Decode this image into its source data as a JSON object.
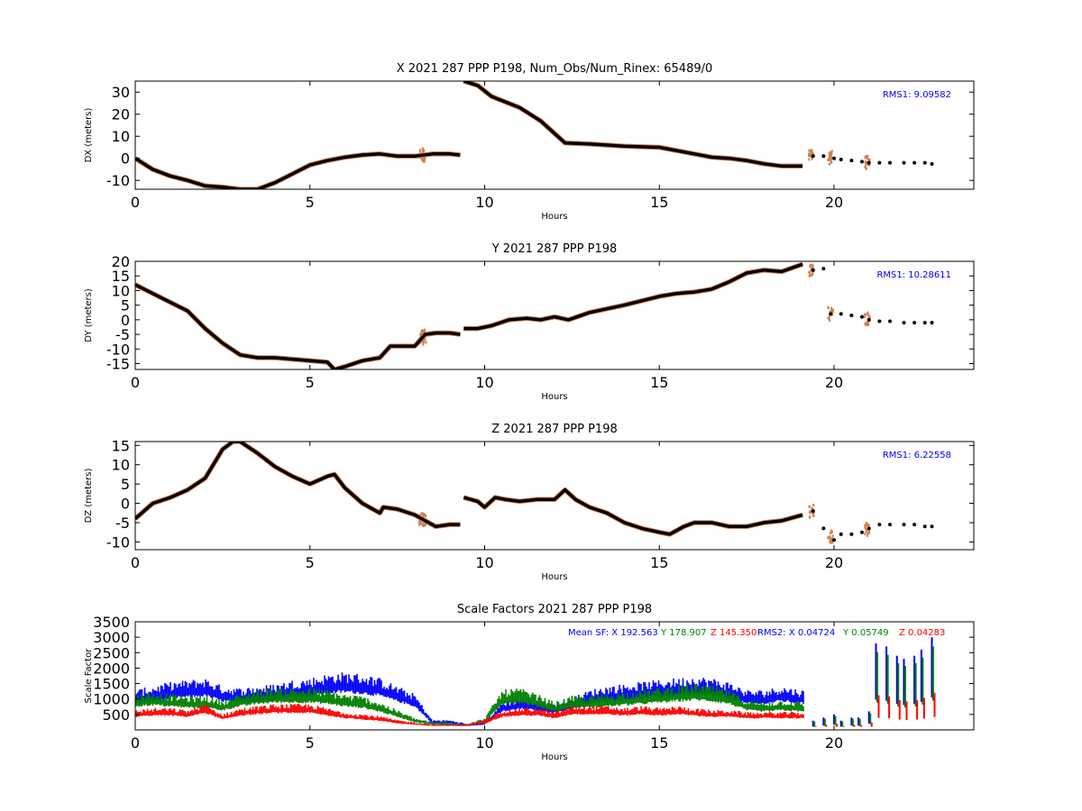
{
  "chart_data": [
    {
      "type": "scatter",
      "title": "X 2021 287 PPP  P198, Num_Obs/Num_Rinex: 65489/0",
      "xlabel": "Hours",
      "ylabel": "DX (meters)",
      "xlim": [
        0,
        24
      ],
      "ylim": [
        -14,
        35
      ],
      "xticks": [
        0,
        5,
        10,
        15,
        20
      ],
      "yticks": [
        -10,
        0,
        10,
        20,
        30
      ],
      "annotation": "RMS1:  9.09582",
      "colors": {
        "points": "#000000",
        "error": "#cd8050",
        "annotation": "#0000ff"
      },
      "series": [
        {
          "x": [
            0,
            0.5,
            1.0,
            1.5,
            2.0,
            2.5,
            3.0,
            3.5,
            4.0,
            4.5,
            5.0,
            5.5,
            6.0,
            6.5,
            7.0,
            7.5,
            8.0,
            8.5,
            9.0,
            9.3
          ],
          "y": [
            0,
            -5,
            -8,
            -10,
            -12.5,
            -13,
            -14,
            -14,
            -11,
            -7,
            -3,
            -1,
            0.5,
            1.5,
            2,
            1,
            1,
            2,
            2,
            1.5
          ],
          "error_at": [
            8.2,
            8.25
          ]
        },
        {
          "x": [
            9.4,
            9.8,
            10.2,
            11,
            11.6,
            12.3,
            13,
            14,
            15,
            16,
            16.5,
            17,
            17.5,
            18,
            18.5,
            19.1
          ],
          "y": [
            35,
            33,
            28,
            23,
            17,
            7,
            6.5,
            5.5,
            5,
            2,
            0.5,
            0,
            -1,
            -2.5,
            -3.5,
            -3.5
          ],
          "error_at": []
        },
        {
          "x": [
            19.4,
            19.7,
            20.0,
            20.2,
            20.5,
            20.8,
            21.0,
            21.3,
            21.6,
            22.0,
            22.3,
            22.6,
            22.8
          ],
          "y": [
            1,
            1,
            0,
            -0.5,
            -1,
            -1.5,
            -2,
            -2,
            -2,
            -2,
            -2,
            -2,
            -2.5
          ],
          "error_at": [
            19.35,
            19.9,
            20.95
          ]
        }
      ]
    },
    {
      "type": "scatter",
      "title": "Y 2021 287 PPP  P198",
      "xlabel": "Hours",
      "ylabel": "DY (meters)",
      "xlim": [
        0,
        24
      ],
      "ylim": [
        -17,
        20
      ],
      "xticks": [
        0,
        5,
        10,
        15,
        20
      ],
      "yticks": [
        -15,
        -10,
        -5,
        0,
        5,
        10,
        15,
        20
      ],
      "annotation": "RMS1: 10.28611",
      "colors": {
        "points": "#000000",
        "error": "#cd8050",
        "annotation": "#0000ff"
      },
      "series": [
        {
          "x": [
            0,
            0.5,
            1.0,
            1.5,
            2.0,
            2.5,
            3.0,
            3.5,
            4.0,
            4.5,
            5.0,
            5.5,
            5.7,
            6.0,
            6.5,
            7.0,
            7.3,
            7.6,
            8.0,
            8.3,
            8.6,
            9.0,
            9.3
          ],
          "y": [
            12,
            9,
            6,
            3,
            -3,
            -8,
            -12,
            -13,
            -13,
            -13.5,
            -14,
            -14.5,
            -17,
            -16,
            -14,
            -13,
            -9,
            -9,
            -9,
            -5,
            -4.5,
            -4.5,
            -5
          ],
          "error_at": [
            8.2,
            8.25
          ]
        },
        {
          "x": [
            9.4,
            9.8,
            10.2,
            10.7,
            11.2,
            11.6,
            12.0,
            12.4,
            13,
            14,
            15,
            15.5,
            16,
            16.5,
            17,
            17.5,
            18,
            18.5,
            19.1
          ],
          "y": [
            -3,
            -3,
            -2,
            0,
            0.5,
            0,
            1,
            0,
            2.5,
            5,
            8,
            9,
            9.5,
            10.5,
            13,
            16,
            17,
            16.5,
            19
          ],
          "error_at": []
        },
        {
          "x": [
            19.4,
            19.7,
            19.9,
            20.2,
            20.5,
            20.8,
            21.0,
            21.3,
            21.6,
            22.0,
            22.3,
            22.6,
            22.8
          ],
          "y": [
            17,
            17.5,
            2,
            2,
            1.5,
            1,
            0,
            -0.5,
            -0.5,
            -1,
            -1,
            -1,
            -1
          ],
          "error_at": [
            19.35,
            19.9,
            20.95
          ]
        }
      ]
    },
    {
      "type": "scatter",
      "title": "Z 2021 287 PPP  P198",
      "xlabel": "Hours",
      "ylabel": "DZ (meters)",
      "xlim": [
        0,
        24
      ],
      "ylim": [
        -12,
        16
      ],
      "xticks": [
        0,
        5,
        10,
        15,
        20
      ],
      "yticks": [
        -10,
        -5,
        0,
        5,
        10,
        15
      ],
      "annotation": "RMS1:  6.22558",
      "colors": {
        "points": "#000000",
        "error": "#cd8050",
        "annotation": "#0000ff"
      },
      "series": [
        {
          "x": [
            0,
            0.5,
            1.0,
            1.5,
            2.0,
            2.5,
            2.8,
            3.0,
            3.5,
            4.0,
            4.5,
            5.0,
            5.5,
            5.7,
            6.0,
            6.5,
            7.0,
            7.1,
            7.5,
            8.0,
            8.3,
            8.6,
            9.0,
            9.3
          ],
          "y": [
            -4,
            0,
            1.5,
            3.5,
            6.5,
            14,
            16,
            16,
            13,
            9.5,
            7,
            5,
            7,
            7.5,
            4,
            0,
            -2.5,
            -1,
            -1.5,
            -3,
            -4.5,
            -6,
            -5.5,
            -5.5
          ],
          "error_at": [
            8.2,
            8.25
          ]
        },
        {
          "x": [
            9.4,
            9.8,
            10.0,
            10.3,
            10.6,
            11.0,
            11.5,
            12.0,
            12.3,
            12.6,
            13,
            13.5,
            14,
            14.5,
            15,
            15.3,
            15.7,
            16,
            16.5,
            17,
            17.5,
            18,
            18.5,
            19.1
          ],
          "y": [
            1.5,
            0.5,
            -1,
            1.5,
            1,
            0.5,
            1,
            1,
            3.5,
            1,
            -1,
            -2.5,
            -5,
            -6.5,
            -7.5,
            -8,
            -6,
            -5,
            -5,
            -6,
            -6,
            -5,
            -4.5,
            -3
          ],
          "error_at": []
        },
        {
          "x": [
            19.4,
            19.7,
            20.0,
            20.2,
            20.5,
            20.8,
            21.0,
            21.3,
            21.6,
            22.0,
            22.3,
            22.6,
            22.8
          ],
          "y": [
            -2,
            -6.5,
            -9.5,
            -8,
            -8,
            -7.5,
            -6.5,
            -5.5,
            -5.5,
            -5.5,
            -5.5,
            -6,
            -6
          ],
          "error_at": [
            19.35,
            19.9,
            20.95
          ]
        }
      ]
    },
    {
      "type": "scatter",
      "title": "Scale Factors 2021 287 PPP  P198",
      "xlabel": "Hours",
      "ylabel": "Scale Factor",
      "xlim": [
        0,
        24
      ],
      "ylim": [
        0,
        3500
      ],
      "xticks": [
        0,
        5,
        10,
        15,
        20
      ],
      "yticks": [
        500,
        1000,
        1500,
        2000,
        2500,
        3000,
        3500
      ],
      "annotation_parts": [
        {
          "text": "Mean SF: X 192.563",
          "color": "#0000ff"
        },
        {
          "text": "Y 178.907",
          "color": "#008000"
        },
        {
          "text": "Z 145.350",
          "color": "#ff0000"
        },
        {
          "text": "RMS2: X  0.04724",
          "color": "#0000ff"
        },
        {
          "text": "Y  0.05749",
          "color": "#008000"
        },
        {
          "text": "Z  0.04283",
          "color": "#ff0000"
        }
      ],
      "series": [
        {
          "name": "X",
          "color": "#0000ff",
          "x": [
            0,
            0.5,
            1.0,
            1.5,
            2.0,
            2.5,
            3.0,
            3.5,
            4.0,
            4.5,
            5.0,
            5.5,
            6.0,
            6.5,
            7.0,
            7.5,
            8.0,
            8.5,
            9.0,
            9.3,
            9.5,
            10.0,
            10.5,
            11.0,
            11.5,
            12.0,
            12.5,
            13,
            13.5,
            14,
            14.5,
            15,
            15.5,
            16,
            16.5,
            17,
            17.5,
            18,
            18.5,
            19.1
          ],
          "y": [
            1000,
            1100,
            1200,
            1250,
            1300,
            1100,
            1050,
            1100,
            1150,
            1250,
            1300,
            1400,
            1450,
            1400,
            1300,
            1100,
            900,
            250,
            250,
            200,
            150,
            200,
            700,
            800,
            750,
            650,
            800,
            1000,
            1100,
            1150,
            1200,
            1250,
            1300,
            1350,
            1300,
            1200,
            1000,
            1000,
            1100,
            1000
          ]
        },
        {
          "name": "Y",
          "color": "#008000",
          "x": [
            0,
            0.5,
            1.0,
            1.5,
            2.0,
            2.5,
            3.0,
            3.5,
            4.0,
            4.5,
            5.0,
            5.5,
            6.0,
            6.5,
            7.0,
            7.5,
            8.0,
            8.5,
            9.0,
            9.3,
            9.5,
            10.0,
            10.5,
            11.0,
            11.5,
            12.0,
            12.5,
            13,
            13.5,
            14,
            14.5,
            15,
            15.5,
            16,
            16.5,
            17,
            17.5,
            18,
            18.5,
            19.1
          ],
          "y": [
            900,
            950,
            900,
            850,
            850,
            750,
            900,
            1000,
            1050,
            1050,
            1050,
            1000,
            900,
            850,
            700,
            500,
            300,
            200,
            200,
            150,
            150,
            300,
            1000,
            1050,
            900,
            700,
            850,
            850,
            900,
            950,
            1000,
            1050,
            1100,
            1150,
            1100,
            1000,
            750,
            700,
            750,
            700
          ]
        },
        {
          "name": "Z",
          "color": "#ff0000",
          "x": [
            0,
            0.5,
            1.0,
            1.5,
            2.0,
            2.5,
            3.0,
            3.5,
            4.0,
            4.5,
            5.0,
            5.5,
            6.0,
            6.5,
            7.0,
            7.5,
            8.0,
            8.5,
            9.0,
            9.3,
            9.5,
            10.0,
            10.5,
            11.0,
            11.5,
            12.0,
            12.5,
            13,
            13.5,
            14,
            14.5,
            15,
            15.5,
            16,
            16.5,
            17,
            17.5,
            18,
            18.5,
            19.1
          ],
          "y": [
            500,
            550,
            550,
            500,
            650,
            400,
            550,
            600,
            650,
            650,
            650,
            550,
            450,
            400,
            350,
            250,
            200,
            150,
            150,
            150,
            150,
            250,
            500,
            550,
            550,
            450,
            600,
            600,
            600,
            550,
            600,
            550,
            600,
            550,
            500,
            500,
            450,
            450,
            450,
            450
          ]
        }
      ],
      "spikes_x": [
        19.4,
        19.7,
        20.0,
        20.2,
        20.5,
        20.7,
        21.0,
        21.2,
        21.5,
        21.8,
        22.0,
        22.3,
        22.5,
        22.8
      ],
      "spikes_top": [
        300,
        400,
        500,
        300,
        400,
        400,
        600,
        2800,
        2700,
        2400,
        2300,
        2400,
        2600,
        3000
      ]
    }
  ]
}
